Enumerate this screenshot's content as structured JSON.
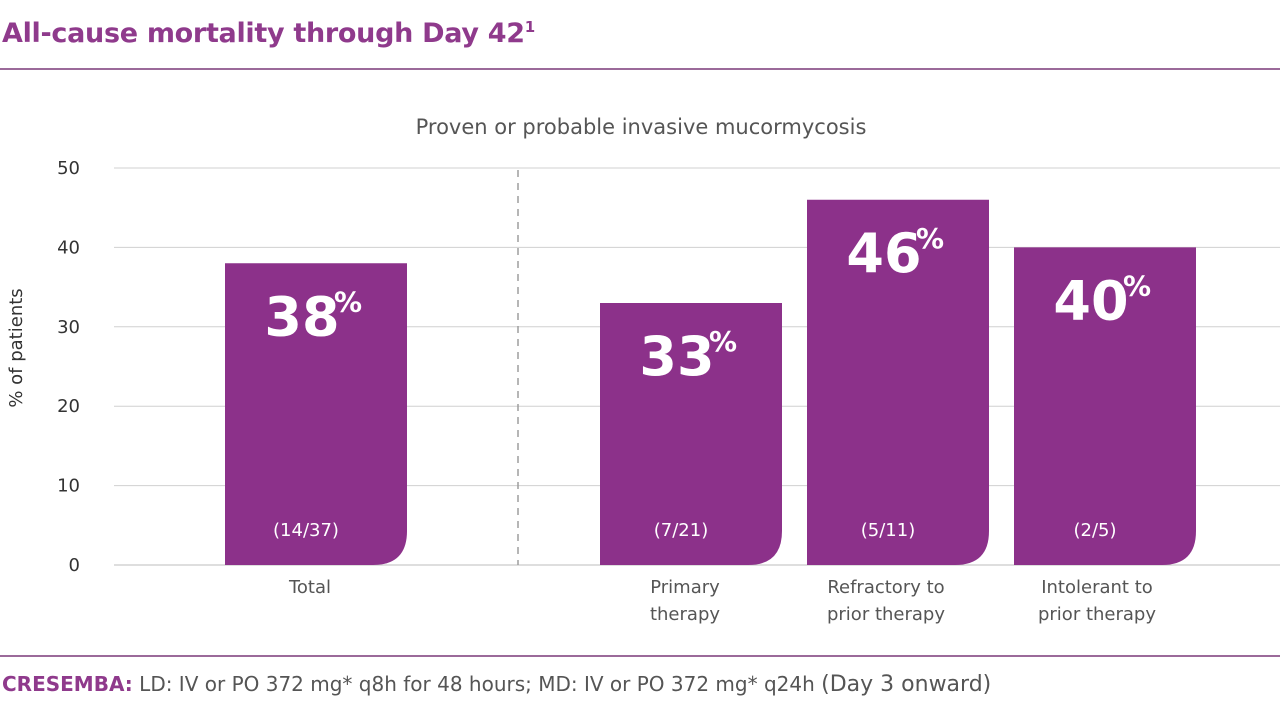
{
  "header": {
    "title": "All-cause mortality through Day 42",
    "title_sup": "1"
  },
  "footer": {
    "brand": "CRESEMBA:",
    "text": " LD: IV or PO 372 mg* q8h for 48 hours; MD: IV or PO 372 mg* q24h ",
    "tail": "(Day 3 onward)"
  },
  "colors": {
    "bar": "#8c318a",
    "title": "#8f3a8c",
    "grid": "#d0d0d0",
    "rule": "#9b6a9a"
  },
  "chart_data": {
    "type": "bar",
    "subtitle": "Proven or probable invasive mucormycosis",
    "ylabel": "% of patients",
    "ylim": [
      0,
      50
    ],
    "yticks": [
      0,
      10,
      20,
      30,
      40,
      50
    ],
    "grid": true,
    "bars": [
      {
        "category": [
          "Total"
        ],
        "value": 38,
        "label": "38",
        "fraction": "(14/37)"
      },
      {
        "category": [
          "Primary",
          "therapy"
        ],
        "value": 33,
        "label": "33",
        "fraction": "(7/21)"
      },
      {
        "category": [
          "Refractory to",
          "prior therapy"
        ],
        "value": 46,
        "label": "46",
        "fraction": "(5/11)"
      },
      {
        "category": [
          "Intolerant to",
          "prior therapy"
        ],
        "value": 40,
        "label": "40",
        "fraction": "(2/5)"
      }
    ],
    "value_suffix": "%"
  }
}
